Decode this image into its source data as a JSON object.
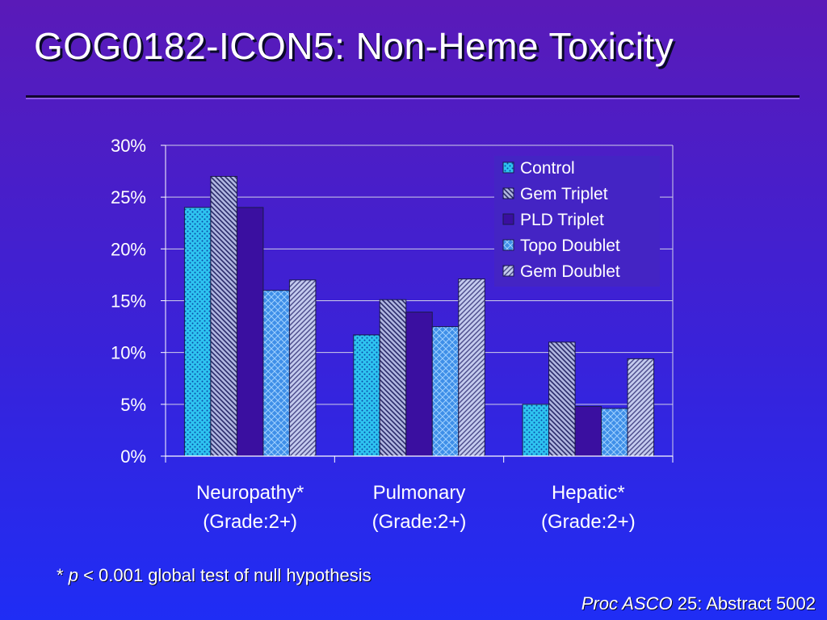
{
  "slide": {
    "title": "GOG0182-ICON5:  Non-Heme Toxicity",
    "footnote": {
      "star": "*",
      "p": "p",
      "rest": "< 0.001 global test of null hypothesis"
    },
    "source": {
      "journal": "Proc ASCO",
      "rest": "25: Abstract 5002"
    }
  },
  "chart_data": {
    "type": "bar",
    "categories": [
      [
        "Neuropathy*",
        "(Grade:2+)"
      ],
      [
        "Pulmonary",
        "(Grade:2+)"
      ],
      [
        "Hepatic*",
        "(Grade:2+)"
      ]
    ],
    "series": [
      {
        "name": "Control",
        "values": [
          24,
          11.7,
          5
        ],
        "color": "#2ec4f0",
        "pattern": "dots"
      },
      {
        "name": "Gem Triplet",
        "values": [
          27,
          15.1,
          11
        ],
        "color": "#9ea7d6",
        "pattern": "diag-back"
      },
      {
        "name": "PLD Triplet",
        "values": [
          24,
          13.9,
          4.8
        ],
        "color": "#3a0fa0",
        "pattern": "solid"
      },
      {
        "name": "Topo Doublet",
        "values": [
          16,
          12.5,
          4.6
        ],
        "color": "#3f8fe8",
        "pattern": "crosshatch"
      },
      {
        "name": "Gem Doublet",
        "values": [
          17,
          17.1,
          9.4
        ],
        "color": "#b4bde6",
        "pattern": "diag-fwd"
      }
    ],
    "y_ticks": [
      "0%",
      "5%",
      "10%",
      "15%",
      "20%",
      "25%",
      "30%"
    ],
    "ylim": [
      0,
      30
    ],
    "grid": true,
    "legend": "top-right"
  }
}
